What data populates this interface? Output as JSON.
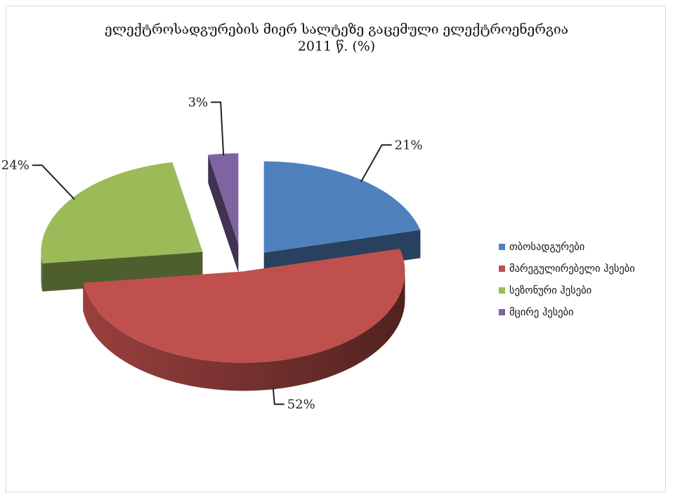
{
  "chart_data": {
    "type": "pie",
    "title": "ელექტროსადგურების მიერ სალტეზე გაცემული ელექტროენერგია",
    "subtitle": "2011 წ. (%)",
    "categories": [
      "თბოსადგურები",
      "მარეგულირებელი ჰესები",
      "სეზონური ჰესები",
      "მცირე ჰესები"
    ],
    "values": [
      21,
      52,
      24,
      3
    ],
    "labels": [
      "21%",
      "52%",
      "24%",
      "3%"
    ],
    "colors": [
      "#4F81BD",
      "#C0504D",
      "#9BBB59",
      "#8064A2"
    ],
    "legend_position": "right",
    "style": "3d-exploded"
  }
}
